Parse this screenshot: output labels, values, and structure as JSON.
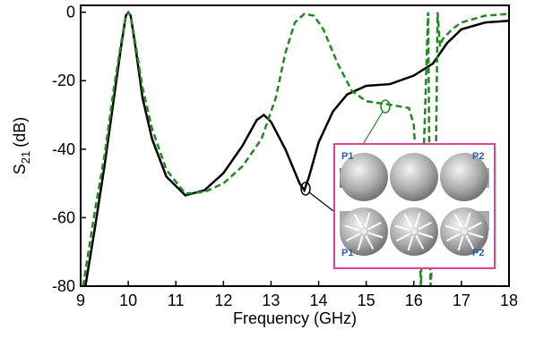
{
  "chart_data": {
    "type": "line",
    "xlabel": "Frequency (GHz)",
    "ylabel": {
      "main": "S",
      "subscript": "21",
      "unit": "(dB)"
    },
    "xlim": [
      9,
      18
    ],
    "xticks": [
      9,
      10,
      11,
      12,
      13,
      14,
      15,
      16,
      17,
      18
    ],
    "ylim": [
      -80,
      2
    ],
    "yticks": [
      0,
      -20,
      -40,
      -60,
      -80
    ],
    "series": [
      {
        "color": "#000000",
        "dash": false,
        "x": [
          9.1,
          9.3,
          9.5,
          9.7,
          9.85,
          9.95,
          10.0,
          10.05,
          10.15,
          10.3,
          10.5,
          10.8,
          11.2,
          11.6,
          12.0,
          12.4,
          12.7,
          12.85,
          13.0,
          13.3,
          13.6,
          13.7,
          13.8,
          14.0,
          14.3,
          14.6,
          15.0,
          15.5,
          16.0,
          16.4,
          16.7,
          17.0,
          17.5,
          18.0
        ],
        "values": [
          -80,
          -63,
          -45,
          -25,
          -10,
          -1,
          0,
          -1,
          -10,
          -25,
          -37,
          -48,
          -53.5,
          -52,
          -47,
          -39,
          -31.5,
          -30,
          -32,
          -40,
          -50,
          -52,
          -48,
          -38,
          -29,
          -24,
          -21.5,
          -21,
          -18.5,
          -15,
          -9,
          -5,
          -3,
          -2.5
        ]
      },
      {
        "color": "#1f8a1f",
        "dash": true,
        "x": [
          9.05,
          9.3,
          9.5,
          9.7,
          9.85,
          9.95,
          10.0,
          10.05,
          10.15,
          10.3,
          10.5,
          10.8,
          11.2,
          11.6,
          12.0,
          12.4,
          12.8,
          13.1,
          13.3,
          13.5,
          13.7,
          13.9,
          14.1,
          14.4,
          14.7,
          15.0,
          15.5,
          15.9,
          16.0,
          16.1,
          16.15,
          16.2,
          16.3,
          16.35,
          16.45,
          16.5,
          16.55,
          16.6,
          16.8,
          17.0,
          17.5,
          18.0
        ],
        "values": [
          -80,
          -58,
          -42,
          -22,
          -9,
          -1,
          0,
          -1,
          -9,
          -22,
          -34,
          -46,
          -53,
          -52.5,
          -50,
          -45,
          -37,
          -25,
          -12,
          -3,
          -0.5,
          -1,
          -5,
          -15,
          -23,
          -26,
          -27,
          -28,
          -33,
          -60,
          -80,
          -45,
          0,
          -80,
          -60,
          0,
          -10,
          -8,
          -5,
          -3,
          -1,
          -0.5
        ]
      }
    ],
    "inset_labels": [
      "P1",
      "P2",
      "P1",
      "P2"
    ]
  }
}
